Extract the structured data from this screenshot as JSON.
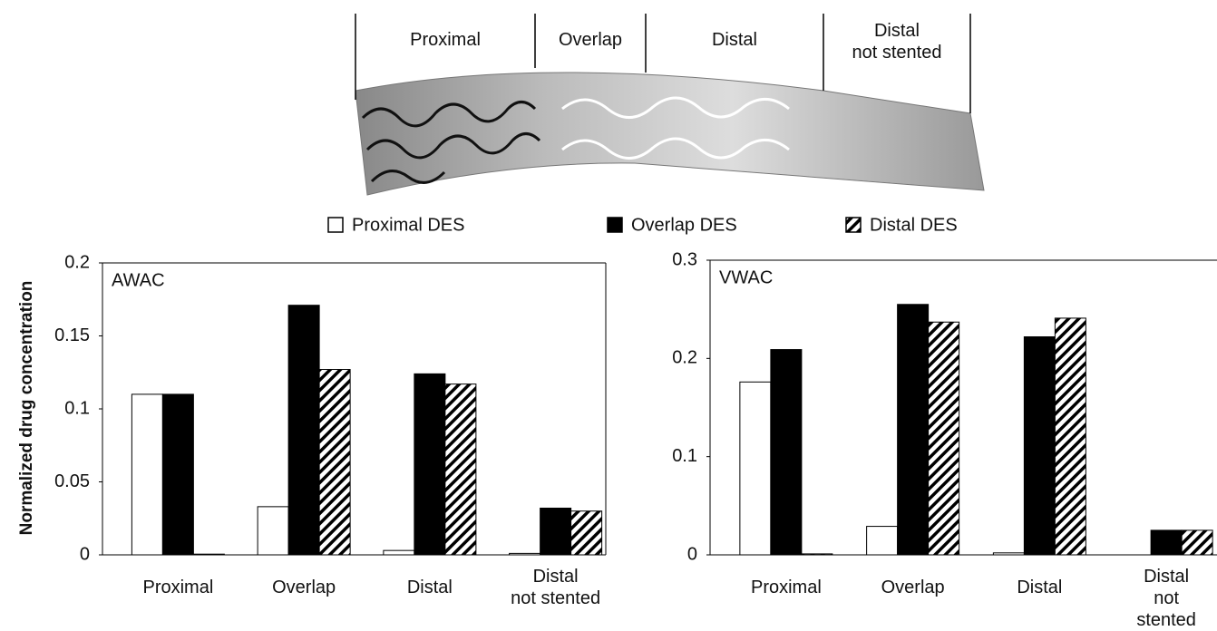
{
  "header": {
    "regions": [
      "Proximal",
      "Overlap",
      "Distal",
      "Distal\nnot stented"
    ]
  },
  "y_label": "Normalized drug concentration",
  "chart_data": [
    {
      "type": "bar",
      "title": "AWAC",
      "categories": [
        "Proximal",
        "Overlap",
        "Distal",
        "Distal\nnot stented"
      ],
      "series": [
        {
          "name": "Proximal DES",
          "color": "#ffffff",
          "values": [
            0.11,
            0.033,
            0.003,
            0.001
          ]
        },
        {
          "name": "Overlap DES",
          "color": "#000000",
          "values": [
            0.11,
            0.171,
            0.124,
            0.032
          ]
        },
        {
          "name": "Distal DES",
          "color": "hatch",
          "values": [
            0.0005,
            0.127,
            0.117,
            0.03
          ]
        }
      ],
      "ylim": [
        0,
        0.2
      ],
      "yticks": [
        0,
        0.05,
        0.1,
        0.15,
        0.2
      ]
    },
    {
      "type": "bar",
      "title": "VWAC",
      "categories": [
        "Proximal",
        "Overlap",
        "Distal",
        "Distal\nnot stented"
      ],
      "series": [
        {
          "values": [
            0.176,
            0.029,
            0.002,
            0
          ]
        },
        {
          "values": [
            0.209,
            0.255,
            0.222,
            0.025
          ]
        },
        {
          "values": [
            0.001,
            0.237,
            0.241,
            0.025
          ]
        }
      ],
      "ylim": [
        0,
        0.3
      ],
      "yticks": [
        0,
        0.1,
        0.2,
        0.3
      ]
    }
  ]
}
